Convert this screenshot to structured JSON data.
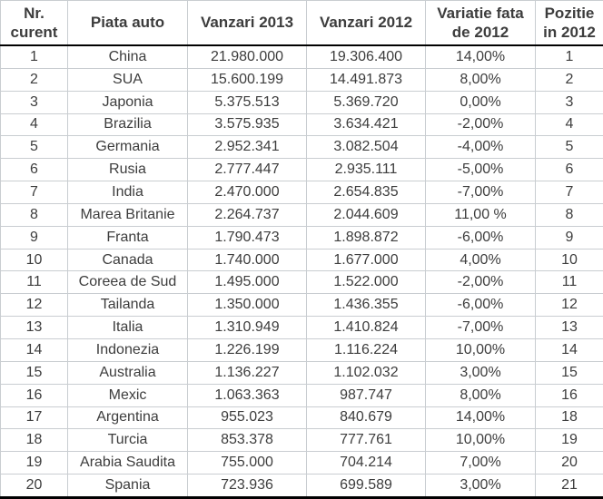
{
  "chart_data": {
    "type": "table",
    "columns": [
      "Nr. curent",
      "Piata auto",
      "Vanzari 2013",
      "Vanzari 2012",
      "Variatie fata de 2012",
      "Pozitie in 2012"
    ],
    "rows": [
      [
        "1",
        "China",
        "21.980.000",
        "19.306.400",
        "14,00%",
        "1"
      ],
      [
        "2",
        "SUA",
        "15.600.199",
        "14.491.873",
        "8,00%",
        "2"
      ],
      [
        "3",
        "Japonia",
        "5.375.513",
        "5.369.720",
        "0,00%",
        "3"
      ],
      [
        "4",
        "Brazilia",
        "3.575.935",
        "3.634.421",
        "-2,00%",
        "4"
      ],
      [
        "5",
        "Germania",
        "2.952.341",
        "3.082.504",
        "-4,00%",
        "5"
      ],
      [
        "6",
        "Rusia",
        "2.777.447",
        "2.935.111",
        "-5,00%",
        "6"
      ],
      [
        "7",
        "India",
        "2.470.000",
        "2.654.835",
        "-7,00%",
        "7"
      ],
      [
        "8",
        "Marea Britanie",
        "2.264.737",
        "2.044.609",
        "11,00 %",
        "8"
      ],
      [
        "9",
        "Franta",
        "1.790.473",
        "1.898.872",
        "-6,00%",
        "9"
      ],
      [
        "10",
        "Canada",
        "1.740.000",
        "1.677.000",
        "4,00%",
        "10"
      ],
      [
        "11",
        "Coreea de Sud",
        "1.495.000",
        "1.522.000",
        "-2,00%",
        "11"
      ],
      [
        "12",
        "Tailanda",
        "1.350.000",
        "1.436.355",
        "-6,00%",
        "12"
      ],
      [
        "13",
        "Italia",
        "1.310.949",
        "1.410.824",
        "-7,00%",
        "13"
      ],
      [
        "14",
        "Indonezia",
        "1.226.199",
        "1.116.224",
        "10,00%",
        "14"
      ],
      [
        "15",
        "Australia",
        "1.136.227",
        "1.102.032",
        "3,00%",
        "15"
      ],
      [
        "16",
        "Mexic",
        "1.063.363",
        "987.747",
        "8,00%",
        "16"
      ],
      [
        "17",
        "Argentina",
        "955.023",
        "840.679",
        "14,00%",
        "18"
      ],
      [
        "18",
        "Turcia",
        "853.378",
        "777.761",
        "10,00%",
        "19"
      ],
      [
        "19",
        "Arabia Saudita",
        "755.000",
        "704.214",
        "7,00%",
        "20"
      ],
      [
        "20",
        "Spania",
        "723.936",
        "699.589",
        "3,00%",
        "21"
      ]
    ]
  },
  "style": {
    "text_color": "#3d3d3d",
    "grid_color": "#c9cdd1",
    "rule_color": "#000000",
    "background": "#ffffff"
  }
}
